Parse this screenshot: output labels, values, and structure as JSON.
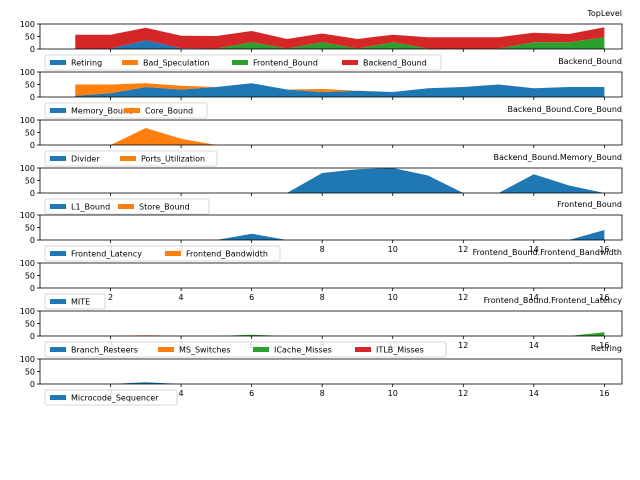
{
  "chart_data": [
    {
      "type": "area",
      "title": "TopLevel",
      "x": [
        1,
        2,
        3,
        4,
        5,
        6,
        7,
        8,
        9,
        10,
        11,
        12,
        13,
        14,
        15,
        16
      ],
      "xlim": [
        0,
        16.5
      ],
      "ylim": [
        0,
        100
      ],
      "yticks": [
        0,
        50,
        100
      ],
      "xticks": [
        2,
        4,
        6,
        8,
        10,
        12,
        14,
        16
      ],
      "xticks_visible": false,
      "legend_pos": "bottom-left",
      "series": [
        {
          "name": "Retiring",
          "color": "#1f77b4",
          "values": [
            2,
            2,
            35,
            3,
            2,
            2,
            2,
            2,
            2,
            2,
            2,
            2,
            2,
            2,
            2,
            2
          ]
        },
        {
          "name": "Bad_Speculation",
          "color": "#ff7f0e",
          "values": [
            0,
            0,
            0,
            0,
            0,
            0,
            0,
            0,
            0,
            0,
            0,
            0,
            0,
            0,
            0,
            0
          ]
        },
        {
          "name": "Frontend_Bound",
          "color": "#2ca02c",
          "values": [
            0,
            0,
            0,
            0,
            0,
            25,
            0,
            25,
            0,
            25,
            0,
            0,
            0,
            25,
            25,
            45
          ]
        },
        {
          "name": "Backend_Bound",
          "color": "#d62728",
          "values": [
            55,
            55,
            50,
            50,
            50,
            45,
            38,
            35,
            38,
            30,
            45,
            45,
            45,
            38,
            33,
            40
          ]
        }
      ]
    },
    {
      "type": "area",
      "title": "Backend_Bound",
      "x": [
        1,
        2,
        3,
        4,
        5,
        6,
        7,
        8,
        9,
        10,
        11,
        12,
        13,
        14,
        15,
        16
      ],
      "xlim": [
        0,
        16.5
      ],
      "ylim": [
        0,
        100
      ],
      "yticks": [
        0,
        50,
        100
      ],
      "xticks": [
        2,
        4,
        6,
        8,
        10,
        12,
        14,
        16
      ],
      "xticks_visible": false,
      "legend_pos": "bottom-left",
      "series": [
        {
          "name": "Memory_Bound",
          "color": "#1f77b4",
          "values": [
            5,
            15,
            40,
            30,
            40,
            55,
            30,
            20,
            25,
            20,
            35,
            40,
            50,
            35,
            40,
            40
          ]
        },
        {
          "name": "Core_Bound",
          "color": "#ff7f0e",
          "values": [
            45,
            35,
            15,
            15,
            0,
            0,
            0,
            12,
            0,
            0,
            0,
            0,
            0,
            0,
            0,
            0
          ]
        }
      ]
    },
    {
      "type": "area",
      "title": "Backend_Bound.Core_Bound",
      "x": [
        1,
        2,
        3,
        4,
        5,
        6,
        7,
        8,
        9,
        10,
        11,
        12,
        13,
        14,
        15,
        16
      ],
      "xlim": [
        0,
        16.5
      ],
      "ylim": [
        0,
        100
      ],
      "yticks": [
        0,
        50,
        100
      ],
      "xticks": [
        2,
        4,
        6,
        8,
        10,
        12,
        14,
        16
      ],
      "xticks_visible": false,
      "legend_pos": "bottom-left",
      "series": [
        {
          "name": "Divider",
          "color": "#1f77b4",
          "values": [
            0,
            0,
            0,
            0,
            0,
            0,
            0,
            0,
            0,
            0,
            0,
            0,
            0,
            0,
            0,
            0
          ]
        },
        {
          "name": "Ports_Utilization",
          "color": "#ff7f0e",
          "values": [
            0,
            0,
            68,
            25,
            0,
            0,
            0,
            0,
            0,
            0,
            0,
            0,
            0,
            0,
            0,
            0
          ]
        }
      ]
    },
    {
      "type": "area",
      "title": "Backend_Bound.Memory_Bound",
      "x": [
        1,
        2,
        3,
        4,
        5,
        6,
        7,
        8,
        9,
        10,
        11,
        12,
        13,
        14,
        15,
        16
      ],
      "xlim": [
        0,
        16.5
      ],
      "ylim": [
        0,
        100
      ],
      "yticks": [
        0,
        50,
        100
      ],
      "xticks": [
        2,
        4,
        6,
        8,
        10,
        12,
        14,
        16
      ],
      "xticks_visible": false,
      "legend_pos": "bottom-left",
      "series": [
        {
          "name": "L1_Bound",
          "color": "#1f77b4",
          "values": [
            0,
            0,
            0,
            0,
            0,
            0,
            0,
            80,
            95,
            100,
            70,
            0,
            0,
            75,
            30,
            0
          ]
        },
        {
          "name": "Store_Bound",
          "color": "#ff7f0e",
          "values": [
            0,
            0,
            0,
            0,
            0,
            0,
            0,
            0,
            0,
            0,
            0,
            0,
            0,
            0,
            0,
            0
          ]
        }
      ]
    },
    {
      "type": "area",
      "title": "Frontend_Bound",
      "x": [
        1,
        2,
        3,
        4,
        5,
        6,
        7,
        8,
        9,
        10,
        11,
        12,
        13,
        14,
        15,
        16
      ],
      "xlim": [
        0,
        16.5
      ],
      "ylim": [
        0,
        100
      ],
      "yticks": [
        0,
        50,
        100
      ],
      "xticks": [
        2,
        4,
        6,
        8,
        10,
        12,
        14,
        16
      ],
      "xticks_visible": true,
      "legend_pos": "bottom-left",
      "series": [
        {
          "name": "Frontend_Latency",
          "color": "#1f77b4",
          "values": [
            0,
            0,
            0,
            0,
            0,
            25,
            0,
            0,
            0,
            0,
            0,
            0,
            0,
            0,
            0,
            40
          ]
        },
        {
          "name": "Frontend_Bandwidth",
          "color": "#ff7f0e",
          "values": [
            0,
            0,
            0,
            0,
            0,
            0,
            0,
            0,
            0,
            0,
            0,
            0,
            0,
            0,
            0,
            0
          ]
        }
      ]
    },
    {
      "type": "area",
      "title": "Frontend_Bound.Frontend_Bandwidth",
      "x": [
        1,
        2,
        3,
        4,
        5,
        6,
        7,
        8,
        9,
        10,
        11,
        12,
        13,
        14,
        15,
        16
      ],
      "xlim": [
        0,
        16.5
      ],
      "ylim": [
        0,
        100
      ],
      "yticks": [
        0,
        50,
        100
      ],
      "xticks": [
        2,
        4,
        6,
        8,
        10,
        12,
        14,
        16
      ],
      "xticks_visible": true,
      "legend_pos": "bottom-left",
      "series": [
        {
          "name": "MITE",
          "color": "#1f77b4",
          "values": [
            0,
            0,
            0,
            0,
            0,
            0,
            0,
            0,
            0,
            0,
            0,
            0,
            0,
            0,
            0,
            0
          ]
        }
      ]
    },
    {
      "type": "area",
      "title": "Frontend_Bound.Frontend_Latency",
      "x": [
        1,
        2,
        3,
        4,
        5,
        6,
        7,
        8,
        9,
        10,
        11,
        12,
        13,
        14,
        15,
        16
      ],
      "xlim": [
        0,
        16.5
      ],
      "ylim": [
        0,
        100
      ],
      "yticks": [
        0,
        50,
        100
      ],
      "xticks": [
        2,
        4,
        6,
        8,
        10,
        12,
        14,
        16
      ],
      "xticks_visible": true,
      "legend_pos": "bottom-left",
      "series": [
        {
          "name": "Branch_Resteers",
          "color": "#1f77b4",
          "values": [
            0,
            0,
            0,
            0,
            0,
            0,
            0,
            0,
            0,
            0,
            0,
            0,
            0,
            0,
            0,
            0
          ]
        },
        {
          "name": "MS_Switches",
          "color": "#ff7f0e",
          "values": [
            0,
            0,
            3,
            0,
            0,
            0,
            0,
            0,
            0,
            0,
            0,
            0,
            0,
            0,
            0,
            0
          ]
        },
        {
          "name": "ICache_Misses",
          "color": "#2ca02c",
          "values": [
            0,
            0,
            0,
            0,
            0,
            5,
            0,
            0,
            0,
            0,
            0,
            0,
            0,
            0,
            0,
            15
          ]
        },
        {
          "name": "ITLB_Misses",
          "color": "#d62728",
          "values": [
            0,
            0,
            0,
            0,
            0,
            0,
            0,
            0,
            0,
            0,
            0,
            0,
            0,
            0,
            0,
            0
          ]
        }
      ]
    },
    {
      "type": "area",
      "title": "Retiring",
      "x": [
        1,
        2,
        3,
        4,
        5,
        6,
        7,
        8,
        9,
        10,
        11,
        12,
        13,
        14,
        15,
        16
      ],
      "xlim": [
        0,
        16.5
      ],
      "ylim": [
        0,
        100
      ],
      "yticks": [
        0,
        50,
        100
      ],
      "xticks": [
        2,
        4,
        6,
        8,
        10,
        12,
        14,
        16
      ],
      "xticks_visible": true,
      "legend_pos": "bottom-left",
      "series": [
        {
          "name": "Microcode_Sequencer",
          "color": "#1f77b4",
          "values": [
            0,
            0,
            7,
            0,
            0,
            0,
            0,
            0,
            0,
            0,
            0,
            0,
            0,
            0,
            0,
            0
          ]
        }
      ]
    }
  ]
}
